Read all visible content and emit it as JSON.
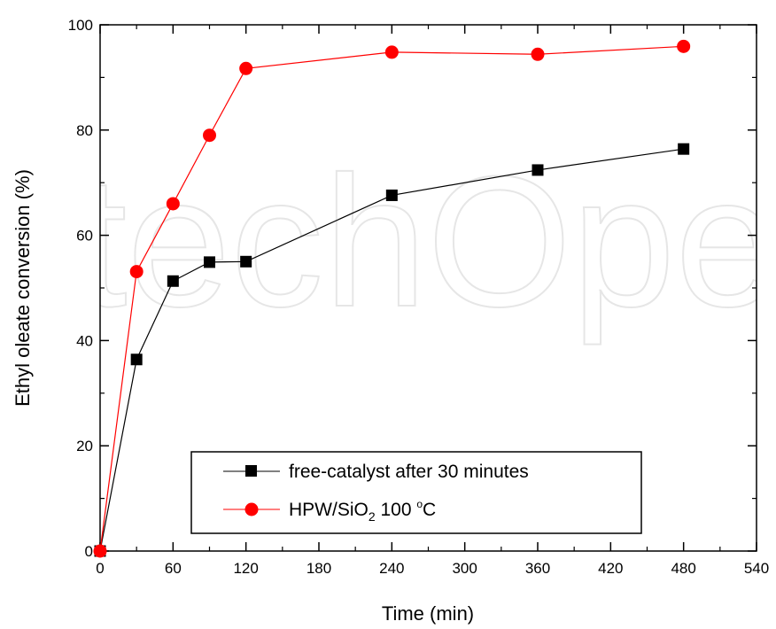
{
  "chart_data": {
    "type": "line",
    "xlabel": "Time (min)",
    "ylabel": "Ethyl oleate conversion (%)",
    "xlim": [
      0,
      540
    ],
    "ylim": [
      0,
      100
    ],
    "x_ticks": [
      0,
      60,
      120,
      180,
      240,
      300,
      360,
      420,
      480,
      540
    ],
    "x_tick_labels": [
      "0",
      "60",
      "120",
      "180",
      "240",
      "300",
      "360",
      "420",
      "480",
      "540"
    ],
    "y_ticks": [
      0,
      20,
      40,
      60,
      80,
      100
    ],
    "y_tick_labels": [
      "0",
      "20",
      "40",
      "60",
      "80",
      "100"
    ],
    "grid": false,
    "legend_position": "bottom-center",
    "series": [
      {
        "name": "free-catalyst after 30 minutes",
        "marker": "square",
        "color": "#000000",
        "x": [
          0,
          30,
          60,
          90,
          120,
          240,
          360,
          480
        ],
        "y": [
          0,
          36.4,
          51.3,
          54.9,
          55.0,
          67.6,
          72.4,
          76.4
        ]
      },
      {
        "name": "HPW/SiO2 100 °C",
        "legend_text": {
          "a": "HPW/SiO",
          "sub": "2",
          "b": " 100 ",
          "sup": "o",
          "c": "C"
        },
        "marker": "circle",
        "color": "#ff0000",
        "x": [
          0,
          30,
          60,
          90,
          120,
          240,
          360,
          480
        ],
        "y": [
          0,
          53.1,
          66.0,
          79.0,
          91.7,
          94.8,
          94.4,
          95.9
        ]
      }
    ]
  },
  "watermark_text": "IntechOpen"
}
